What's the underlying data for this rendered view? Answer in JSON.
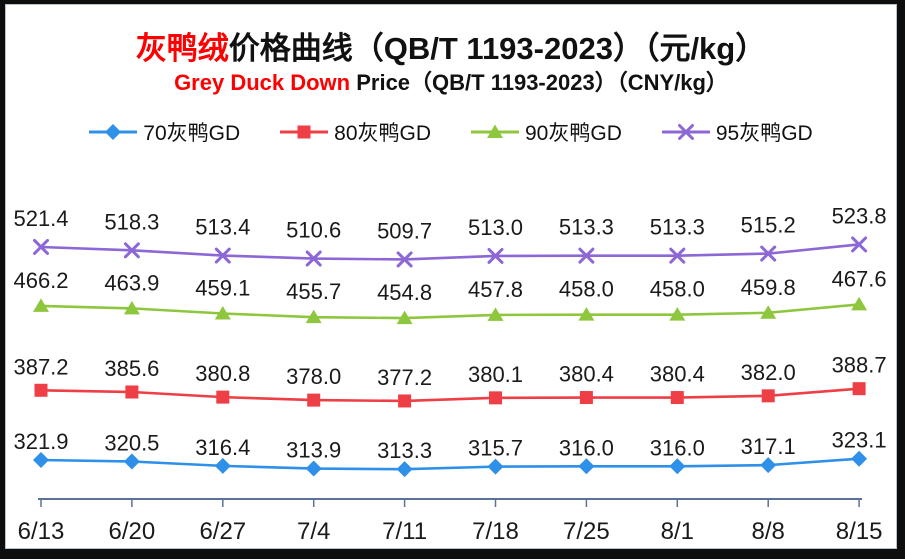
{
  "title": {
    "cn_red": "灰鸭绒",
    "cn_rest": "价格曲线（QB/T 1193-2023）（元/kg）",
    "en_red": "Grey Duck Down",
    "en_rest": " Price（QB/T 1193-2023）（CNY/kg）"
  },
  "colors": {
    "title_accent": "#ff0000",
    "axis_line": "#5b7294",
    "label_text": "#1a1a1a",
    "frame_border": "#b7c2cf",
    "outer_frame": "#0e0e0e"
  },
  "chart_data": {
    "type": "line",
    "title": "灰鸭绒价格曲线（QB/T 1193-2023）（元/kg）",
    "subtitle": "Grey Duck Down Price（QB/T 1193-2023）（CNY/kg）",
    "xlabel": "",
    "ylabel": "",
    "ylim": [
      300,
      540
    ],
    "grid": false,
    "legend_position": "top",
    "categories": [
      "6/13",
      "6/20",
      "6/27",
      "7/4",
      "7/11",
      "7/18",
      "7/25",
      "8/1",
      "8/8",
      "8/15"
    ],
    "series": [
      {
        "name": "70灰鸭GD",
        "marker": "diamond",
        "color": "#2e90e8",
        "values": [
          321.9,
          320.5,
          316.4,
          313.9,
          313.3,
          315.7,
          316.0,
          316.0,
          317.1,
          323.1
        ]
      },
      {
        "name": "80灰鸭GD",
        "marker": "square",
        "color": "#ee3e46",
        "values": [
          387.2,
          385.6,
          380.8,
          378.0,
          377.2,
          380.1,
          380.4,
          380.4,
          382.0,
          388.7
        ]
      },
      {
        "name": "90灰鸭GD",
        "marker": "triangle",
        "color": "#8ec63d",
        "values": [
          466.2,
          463.9,
          459.1,
          455.7,
          454.8,
          457.8,
          458.0,
          458.0,
          459.8,
          467.6
        ]
      },
      {
        "name": "95灰鸭GD",
        "marker": "x",
        "color": "#8c67d5",
        "values": [
          521.4,
          518.3,
          513.4,
          510.6,
          509.7,
          513.0,
          513.3,
          513.3,
          515.2,
          523.8
        ]
      }
    ]
  }
}
